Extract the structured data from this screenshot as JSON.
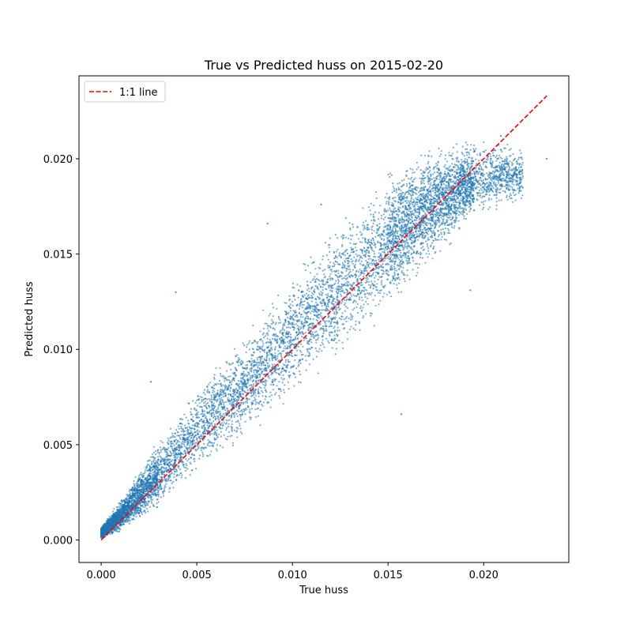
{
  "chart_data": {
    "type": "scatter",
    "title": "True vs Predicted huss on 2015-02-20",
    "xlabel": "True huss",
    "ylabel": "Predicted huss",
    "xlim": [
      -0.00116,
      0.02445
    ],
    "ylim": [
      -0.00118,
      0.02435
    ],
    "xticks": [
      0.0,
      0.005,
      0.01,
      0.015,
      0.02
    ],
    "yticks": [
      0.0,
      0.005,
      0.01,
      0.015,
      0.02
    ],
    "xtick_labels": [
      "0.000",
      "0.005",
      "0.010",
      "0.015",
      "0.020"
    ],
    "ytick_labels": [
      "0.000",
      "0.005",
      "0.010",
      "0.015",
      "0.020"
    ],
    "grid": false,
    "legend": {
      "placement": "top-left",
      "entries": [
        "1:1 line"
      ]
    },
    "series": [
      {
        "kind": "scatter",
        "color": "#1f77b4",
        "envelope": {
          "x": [
            0.0,
            0.001,
            0.002,
            0.003,
            0.004,
            0.005,
            0.006,
            0.007,
            0.008,
            0.009,
            0.01,
            0.011,
            0.012,
            0.013,
            0.014,
            0.015,
            0.016,
            0.017,
            0.018,
            0.019,
            0.02,
            0.021,
            0.022,
            0.0233
          ],
          "y_low": [
            0.0,
            0.0003,
            0.0009,
            0.0015,
            0.0025,
            0.0033,
            0.004,
            0.0047,
            0.0055,
            0.0063,
            0.0072,
            0.008,
            0.0089,
            0.0098,
            0.0108,
            0.0117,
            0.0128,
            0.0138,
            0.015,
            0.0162,
            0.0168,
            0.0172,
            0.0176,
            0.0198
          ],
          "y_high": [
            0.0007,
            0.0022,
            0.0038,
            0.0054,
            0.0068,
            0.0082,
            0.0094,
            0.0105,
            0.0117,
            0.013,
            0.0142,
            0.0154,
            0.0166,
            0.0176,
            0.0186,
            0.0196,
            0.0204,
            0.0207,
            0.0209,
            0.0211,
            0.0212,
            0.0211,
            0.0207,
            0.0202
          ]
        },
        "notable_points": [
          [
            0.0039,
            0.013
          ],
          [
            0.0026,
            0.0083
          ],
          [
            0.0115,
            0.0176
          ],
          [
            0.0087,
            0.0166
          ],
          [
            0.0193,
            0.0131
          ],
          [
            0.0157,
            0.0066
          ],
          [
            0.0209,
            0.0212
          ],
          [
            0.0233,
            0.02
          ]
        ]
      },
      {
        "name": "1:1 line",
        "kind": "line",
        "color": "#ff0000",
        "dash": "dashed",
        "x": [
          0.0,
          0.0233
        ],
        "y": [
          0.0,
          0.0233
        ]
      }
    ]
  }
}
